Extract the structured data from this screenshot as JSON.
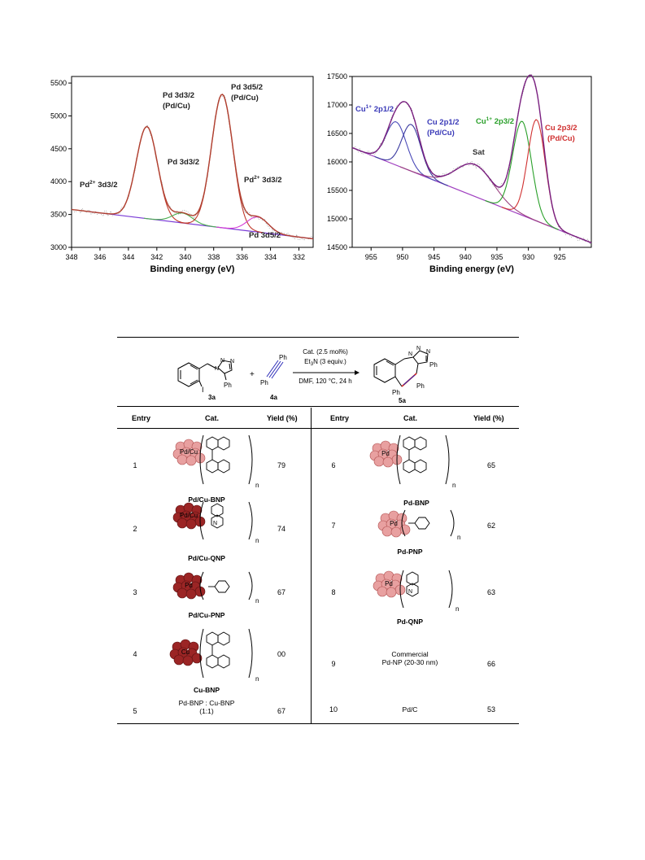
{
  "chart_data": [
    {
      "type": "line",
      "title": "",
      "xlabel": "Binding energy (eV)",
      "ylabel": "",
      "xlim": [
        348,
        331
      ],
      "ylim": [
        3000,
        5600
      ],
      "x_ticks": [
        "348",
        "346",
        "344",
        "342",
        "340",
        "338",
        "336",
        "334",
        "332"
      ],
      "y_ticks": [
        "3000",
        "3500",
        "4000",
        "4500",
        "5000",
        "5500"
      ],
      "peaks": [
        {
          "name": "Pd 3d3/2 (Pd/Cu)",
          "center": 342.7,
          "height": 1400,
          "width": 0.75
        },
        {
          "name": "Pd 3d3/2 (Pd2+)",
          "center": 340.2,
          "height": 150,
          "width": 0.7
        },
        {
          "name": "Pd 3d5/2 (Pd/Cu)",
          "center": 337.4,
          "height": 2030,
          "width": 0.75
        },
        {
          "name": "Pd 3d5/2 (Pd2+)",
          "center": 334.9,
          "height": 230,
          "width": 0.75
        }
      ],
      "baseline": {
        "x": [
          346.8,
          331
        ],
        "y": [
          3545,
          3130
        ]
      },
      "annotations": [
        "Pd 3d3/2",
        "(Pd/Cu)",
        "Pd 3d3/2",
        "Pd 3d5/2",
        "(Pd/Cu)",
        "Pd 3d5/2",
        "3d3/2",
        "3d3/2"
      ],
      "annotation_prefix": "Pd",
      "annotation_sup": "2+",
      "colors": {
        "envelope": "#b04030",
        "component_main": "#c0392b",
        "component_pd2_left": "#4caf50",
        "component_pd2_right": "#d63bd6",
        "baseline": "#7a3bd6",
        "raw": "#555555",
        "arrow": "#aaaaaa"
      }
    },
    {
      "type": "line",
      "title": "",
      "xlabel": "Binding energy (eV)",
      "ylabel": "",
      "xlim": [
        958,
        920
      ],
      "ylim": [
        14500,
        17500
      ],
      "x_ticks": [
        "955",
        "950",
        "945",
        "940",
        "935",
        "930",
        "925"
      ],
      "y_ticks": [
        "14500",
        "15000",
        "15500",
        "16000",
        "16500",
        "17000",
        "17500"
      ],
      "peaks": [
        {
          "name": "Cu1+ 2p1/2",
          "center": 951.0,
          "height": 760,
          "width": 1.6
        },
        {
          "name": "Cu 2p1/2 (Pd/Cu)",
          "center": 948.6,
          "height": 820,
          "width": 1.5
        },
        {
          "name": "Sat",
          "center": 938.5,
          "height": 560,
          "width": 3.0
        },
        {
          "name": "Cu1+ 2p3/2",
          "center": 931.0,
          "height": 1650,
          "width": 1.5
        },
        {
          "name": "Cu 2p3/2 (Pd/Cu)",
          "center": 928.7,
          "height": 1780,
          "width": 1.4
        }
      ],
      "baseline": {
        "x": [
          958,
          920
        ],
        "y": [
          16250,
          14580
        ]
      },
      "annotations": [
        "Cu",
        "2p1/2",
        "Cu 2p1/2",
        "(Pd/Cu)",
        "Sat",
        "Cu",
        "2p3/2",
        "Cu 2p3/2",
        "(Pd/Cu)"
      ],
      "annotation_sup": "1+",
      "colors": {
        "envelope": "#7a2080",
        "component_cu1_left": "#4a4ab8",
        "component_cu_left": "#3a3aa0",
        "component_sat": "#9a4080",
        "component_cu1_right": "#2aa02a",
        "component_cu_right": "#d03030",
        "baseline": "#a040c0",
        "raw": "#555555",
        "label_blue": "#3a3ab8",
        "label_green": "#2aa02a",
        "label_red": "#d03030",
        "label_gray": "#333333"
      }
    }
  ],
  "scheme": {
    "conditions_line1": "Cat. (2.5 mol%)",
    "conditions_line2_a": "Et",
    "conditions_line2_sub": "3",
    "conditions_line2_b": "N (3 equiv.)",
    "conditions_line3": "DMF, 120 °C, 24 h",
    "label_reactant1": "3a",
    "label_reactant2": "4a",
    "label_product": "5a",
    "plus": "+",
    "atom_I": "I",
    "atom_N": "N",
    "atom_Ph": "Ph"
  },
  "table": {
    "headers": {
      "entry": "Entry",
      "cat": "Cat.",
      "yield": "Yield (%)"
    },
    "rows_left": [
      {
        "entry": "1",
        "catalyst": "Pd/Cu-BNP",
        "yield": "79",
        "particle": "Pd/Cu"
      },
      {
        "entry": "2",
        "catalyst": "Pd/Cu-QNP",
        "yield": "74",
        "particle": "Pd/Cu"
      },
      {
        "entry": "3",
        "catalyst": "Pd/Cu-PNP",
        "yield": "67",
        "particle": "Pd"
      },
      {
        "entry": "4",
        "catalyst": "Cu-BNP",
        "yield": "00",
        "particle": "Cu"
      },
      {
        "entry": "5",
        "catalyst_line1": "Pd-BNP : Cu-BNP",
        "catalyst_line2": "(1:1)",
        "yield": "67"
      }
    ],
    "rows_right": [
      {
        "entry": "6",
        "catalyst": "Pd-BNP",
        "yield": "65",
        "particle": "Pd"
      },
      {
        "entry": "7",
        "catalyst": "Pd-PNP",
        "yield": "62",
        "particle": "Pd"
      },
      {
        "entry": "8",
        "catalyst": "Pd-QNP",
        "yield": "63",
        "particle": "Pd"
      },
      {
        "entry": "9",
        "catalyst_line1": "Commercial",
        "catalyst_line2": "Pd-NP (20-30 nm)",
        "yield": "66"
      },
      {
        "entry": "10",
        "catalyst": "Pd/C",
        "yield": "53"
      }
    ],
    "subscript_n": "n",
    "ring_N": "N"
  }
}
